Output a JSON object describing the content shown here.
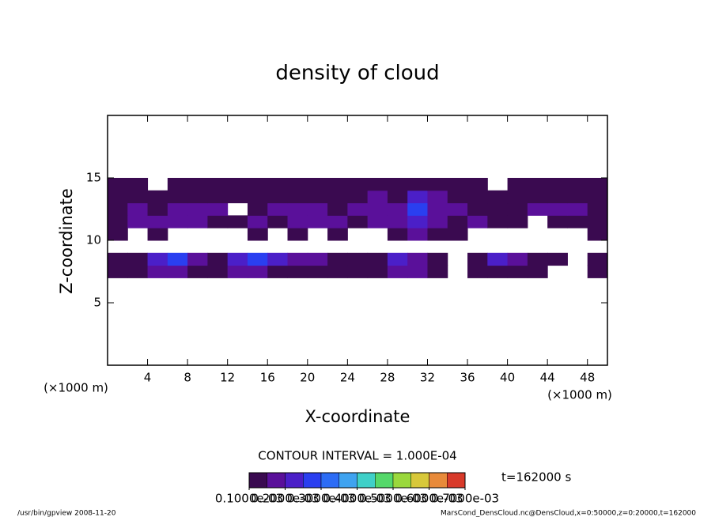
{
  "chart_data": {
    "type": "heatmap",
    "title": "density of cloud",
    "x_label": "X-coordinate",
    "y_label": "Z-coordinate",
    "x_unit": "(×1000 m)",
    "y_unit": "(×1000 m)",
    "contour_interval": "CONTOUR INTERVAL = 1.000E-04",
    "time_label": "t=162000 s",
    "footer_left": "/usr/bin/gpview  2008-11-20",
    "footer_right": "MarsCond_DensCloud.nc@DensCloud,x=0:50000,z=0:20000,t=162000",
    "xlim": [
      0,
      50
    ],
    "ylim": [
      0,
      20
    ],
    "xticks": [
      4,
      8,
      12,
      16,
      20,
      24,
      28,
      32,
      36,
      40,
      44,
      48
    ],
    "yticks": [
      5,
      10,
      15
    ],
    "x": [
      1,
      3,
      5,
      7,
      9,
      11,
      13,
      15,
      17,
      19,
      21,
      23,
      25,
      27,
      29,
      31,
      33,
      35,
      37,
      39,
      41,
      43,
      45,
      47,
      49
    ],
    "z": [
      7.5,
      8.5,
      10.5,
      11.5,
      12.5,
      13.5,
      14.5
    ],
    "values": [
      [
        0.00012,
        0.00013,
        0.00019,
        0.00018,
        0.00014,
        0.00015,
        0.00018,
        0.00016,
        0.00015,
        0.00013,
        0.00014,
        0.00012,
        0.00011,
        0.00013,
        0.00017,
        0.00016,
        0.00013,
        null,
        0.00012,
        0.00013,
        0.00012,
        0.00012,
        null,
        null,
        0.00011
      ],
      [
        0.00011,
        0.00012,
        0.00024,
        0.00025,
        0.00019,
        0.00013,
        0.00022,
        0.00027,
        0.00021,
        0.00018,
        0.00016,
        0.00013,
        0.00012,
        0.00014,
        0.00023,
        0.00019,
        0.00015,
        null,
        0.00014,
        0.00022,
        0.00016,
        0.00013,
        0.00012,
        null,
        0.00011
      ],
      [
        0.00011,
        null,
        0.00012,
        null,
        null,
        null,
        null,
        0.00011,
        null,
        0.00012,
        null,
        0.00011,
        null,
        null,
        0.00012,
        0.00016,
        0.00014,
        0.00012,
        null,
        null,
        null,
        null,
        null,
        null,
        0.00011
      ],
      [
        0.00014,
        0.00018,
        0.00017,
        0.00016,
        0.00018,
        0.00015,
        0.00014,
        0.00016,
        0.00015,
        0.00017,
        0.00018,
        0.00016,
        0.00015,
        0.00017,
        0.00016,
        0.00024,
        0.00018,
        0.00015,
        0.00016,
        0.00014,
        0.00013,
        null,
        0.00012,
        0.00014,
        0.00013
      ],
      [
        0.00015,
        0.00016,
        0.00014,
        0.00017,
        0.00018,
        0.00016,
        null,
        0.00015,
        0.00017,
        0.00018,
        0.00016,
        0.00015,
        0.00017,
        0.00018,
        0.00017,
        0.00026,
        0.00019,
        0.00016,
        0.00014,
        0.00015,
        0.00014,
        0.00016,
        0.00017,
        0.00016,
        0.00015
      ],
      [
        0.00013,
        0.00014,
        0.00012,
        0.00014,
        0.00015,
        0.00014,
        0.00013,
        0.00014,
        0.00015,
        0.00014,
        0.00013,
        0.00014,
        0.00015,
        0.00016,
        0.00015,
        0.00022,
        0.00016,
        0.00014,
        0.00013,
        0.00012,
        0.00013,
        0.00014,
        0.00015,
        0.00014,
        0.00013
      ],
      [
        0.00011,
        0.00012,
        null,
        0.00012,
        0.00013,
        0.00012,
        0.00013,
        0.00012,
        0.00012,
        0.00011,
        0.00012,
        0.00012,
        0.00013,
        0.00012,
        0.00012,
        0.00013,
        0.00012,
        0.00011,
        0.00012,
        null,
        0.00011,
        0.00012,
        0.00012,
        0.00013,
        0.00012
      ]
    ],
    "clim": [
      0.0001,
      0.0007
    ],
    "colors": [
      "#3a0a50",
      "#5a109a",
      "#4b1fc8",
      "#2a3ff0",
      "#2c6cf5",
      "#3fa3f0",
      "#3fd0c8",
      "#55d86a",
      "#9ad83c",
      "#d8c83a",
      "#e88a3a",
      "#d83a2a"
    ],
    "colorbar_ticks": [
      {
        "value": 0.0001,
        "label": "0.1000e-03"
      },
      {
        "value": 0.0002,
        "label": "0.2000e-03"
      },
      {
        "value": 0.0003,
        "label": "0.3000e-03"
      },
      {
        "value": 0.0004,
        "label": "0.4000e-03"
      },
      {
        "value": 0.0005,
        "label": "0.5000e-03"
      },
      {
        "value": 0.0006,
        "label": "0.6000e-03"
      },
      {
        "value": 0.0007,
        "label": "0.7000e-03"
      }
    ]
  }
}
